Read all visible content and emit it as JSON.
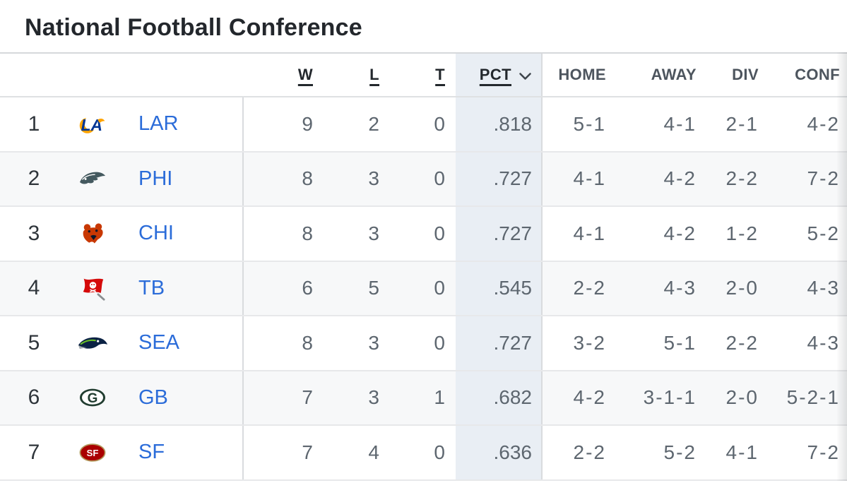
{
  "title": "National Football Conference",
  "table": {
    "headers": {
      "w": "W",
      "l": "L",
      "t": "T",
      "pct": "PCT",
      "home": "HOME",
      "away": "AWAY",
      "div": "DIV",
      "conf": "CONF"
    },
    "sorted_by": "PCT",
    "sort_indicator": "chevron-down",
    "rows": [
      {
        "rank": "1",
        "team": "LAR",
        "w": "9",
        "l": "2",
        "t": "0",
        "pct": ".818",
        "home": "5-1",
        "away": "4-1",
        "div": "2-1",
        "conf": "4-2"
      },
      {
        "rank": "2",
        "team": "PHI",
        "w": "8",
        "l": "3",
        "t": "0",
        "pct": ".727",
        "home": "4-1",
        "away": "4-2",
        "div": "2-2",
        "conf": "7-2"
      },
      {
        "rank": "3",
        "team": "CHI",
        "w": "8",
        "l": "3",
        "t": "0",
        "pct": ".727",
        "home": "4-1",
        "away": "4-2",
        "div": "1-2",
        "conf": "5-2"
      },
      {
        "rank": "4",
        "team": "TB",
        "w": "6",
        "l": "5",
        "t": "0",
        "pct": ".545",
        "home": "2-2",
        "away": "4-3",
        "div": "2-0",
        "conf": "4-3"
      },
      {
        "rank": "5",
        "team": "SEA",
        "w": "8",
        "l": "3",
        "t": "0",
        "pct": ".727",
        "home": "3-2",
        "away": "5-1",
        "div": "2-2",
        "conf": "4-3"
      },
      {
        "rank": "6",
        "team": "GB",
        "w": "7",
        "l": "3",
        "t": "1",
        "pct": ".682",
        "home": "4-2",
        "away": "3-1-1",
        "div": "2-0",
        "conf": "5-2-1"
      },
      {
        "rank": "7",
        "team": "SF",
        "w": "7",
        "l": "4",
        "t": "0",
        "pct": ".636",
        "home": "2-2",
        "away": "5-2",
        "div": "4-1",
        "conf": "7-2"
      }
    ]
  },
  "colors": {
    "link_blue": "#2b6cd9",
    "pct_column_highlight": "#e9eef4",
    "row_alt": "#f7f8f9",
    "header_sort_text": "#23282d"
  }
}
